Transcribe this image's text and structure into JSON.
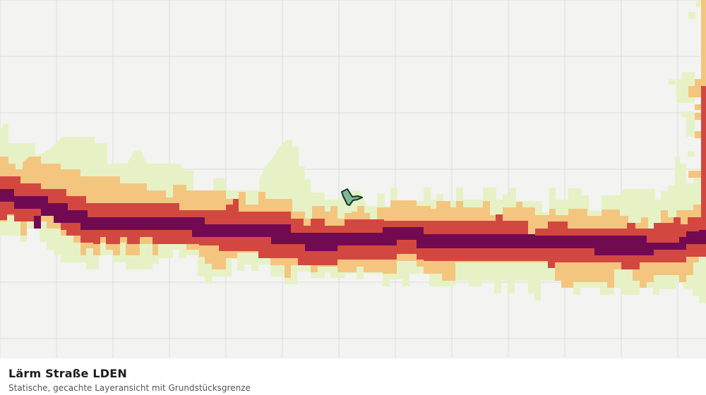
{
  "map": {
    "layer": "Lärm Straße LDEN",
    "background_color": "#f3f3f1",
    "grid_color": "#dcdcda",
    "noise_band_colors": {
      "light": "#e6f2c6",
      "orange": "#f4c57f",
      "red": "#d24840",
      "purple": "#720a52"
    },
    "parcel": {
      "icon": "parcel-polygon-icon",
      "fill": "#6fae8b",
      "stroke": "#173726"
    }
  },
  "caption": {
    "title": "Lärm Straße LDEN",
    "subtitle": "Statische, gecachte Layeransicht mit Grundstücksgrenze"
  }
}
